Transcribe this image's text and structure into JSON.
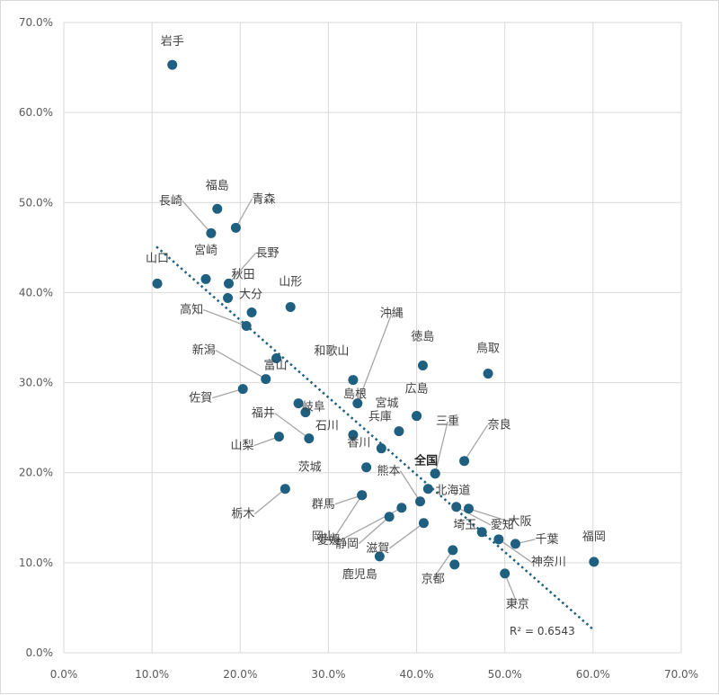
{
  "chart_data": {
    "type": "scatter",
    "xlim": [
      0,
      0.7
    ],
    "ylim": [
      0,
      0.7
    ],
    "x_ticks": [
      "0.0%",
      "10.0%",
      "20.0%",
      "30.0%",
      "40.0%",
      "50.0%",
      "60.0%",
      "70.0%"
    ],
    "y_ticks": [
      "0.0%",
      "10.0%",
      "20.0%",
      "30.0%",
      "40.0%",
      "50.0%",
      "60.0%",
      "70.0%"
    ],
    "grid": true,
    "marker_color": "#1f5f7f",
    "trendline_color": "#1f5f7f",
    "r_squared_label": "R² = 0.6543",
    "trendline": {
      "x_start": 0.105,
      "y_start": 0.451,
      "x_end": 0.6,
      "y_end": 0.026
    },
    "points": [
      {
        "name": "岩手",
        "x": 0.123,
        "y": 0.653
      },
      {
        "name": "福島",
        "x": 0.174,
        "y": 0.493
      },
      {
        "name": "青森",
        "x": 0.195,
        "y": 0.472
      },
      {
        "name": "長崎",
        "x": 0.167,
        "y": 0.466
      },
      {
        "name": "宮崎",
        "x": 0.161,
        "y": 0.415
      },
      {
        "name": "長野",
        "x": 0.187,
        "y": 0.41
      },
      {
        "name": "山口",
        "x": 0.106,
        "y": 0.41
      },
      {
        "name": "秋田",
        "x": 0.186,
        "y": 0.394
      },
      {
        "name": "山形",
        "x": 0.257,
        "y": 0.384
      },
      {
        "name": "大分",
        "x": 0.213,
        "y": 0.378
      },
      {
        "name": "高知",
        "x": 0.207,
        "y": 0.363
      },
      {
        "name": "富山",
        "x": 0.241,
        "y": 0.327
      },
      {
        "name": "新潟",
        "x": 0.229,
        "y": 0.304
      },
      {
        "name": "佐賀",
        "x": 0.203,
        "y": 0.293
      },
      {
        "name": "島根",
        "x": 0.266,
        "y": 0.277
      },
      {
        "name": "岐阜",
        "x": 0.274,
        "y": 0.267
      },
      {
        "name": "福井",
        "x": 0.278,
        "y": 0.238
      },
      {
        "name": "山梨",
        "x": 0.244,
        "y": 0.24
      },
      {
        "name": "和歌山",
        "x": 0.328,
        "y": 0.303
      },
      {
        "name": "沖縄",
        "x": 0.333,
        "y": 0.277
      },
      {
        "name": "石川",
        "x": 0.328,
        "y": 0.242
      },
      {
        "name": "香川",
        "x": 0.36,
        "y": 0.227
      },
      {
        "name": "兵庫",
        "x": 0.38,
        "y": 0.246
      },
      {
        "name": "茨城",
        "x": 0.343,
        "y": 0.206
      },
      {
        "name": "徳島",
        "x": 0.407,
        "y": 0.319
      },
      {
        "name": "広島",
        "x": 0.4,
        "y": 0.263
      },
      {
        "name": "宮城",
        "x": 0.4,
        "y": 0.263
      },
      {
        "name": "鳥取",
        "x": 0.481,
        "y": 0.31
      },
      {
        "name": "奈良",
        "x": 0.454,
        "y": 0.213
      },
      {
        "name": "三重",
        "x": 0.421,
        "y": 0.199
      },
      {
        "name": "全国",
        "x": 0.421,
        "y": 0.199,
        "highlight": true
      },
      {
        "name": "北海道",
        "x": 0.413,
        "y": 0.182
      },
      {
        "name": "熊本",
        "x": 0.404,
        "y": 0.168
      },
      {
        "name": "大阪",
        "x": 0.459,
        "y": 0.16
      },
      {
        "name": "愛知",
        "x": 0.445,
        "y": 0.162
      },
      {
        "name": "埼玉",
        "x": 0.474,
        "y": 0.134
      },
      {
        "name": "神奈川",
        "x": 0.493,
        "y": 0.126
      },
      {
        "name": "千葉",
        "x": 0.512,
        "y": 0.121
      },
      {
        "name": "福岡",
        "x": 0.601,
        "y": 0.101
      },
      {
        "name": "栃木",
        "x": 0.251,
        "y": 0.182
      },
      {
        "name": "群馬",
        "x": 0.338,
        "y": 0.175
      },
      {
        "name": "岡山",
        "x": 0.338,
        "y": 0.175
      },
      {
        "name": "静岡",
        "x": 0.369,
        "y": 0.151
      },
      {
        "name": "愛媛",
        "x": 0.383,
        "y": 0.161
      },
      {
        "name": "滋賀",
        "x": 0.408,
        "y": 0.144
      },
      {
        "name": "鹿児島",
        "x": 0.358,
        "y": 0.107
      },
      {
        "name": "京都",
        "x": 0.441,
        "y": 0.114
      },
      {
        "name": "京都_2",
        "x": 0.443,
        "y": 0.098
      },
      {
        "name": "東京",
        "x": 0.5,
        "y": 0.088
      }
    ]
  }
}
